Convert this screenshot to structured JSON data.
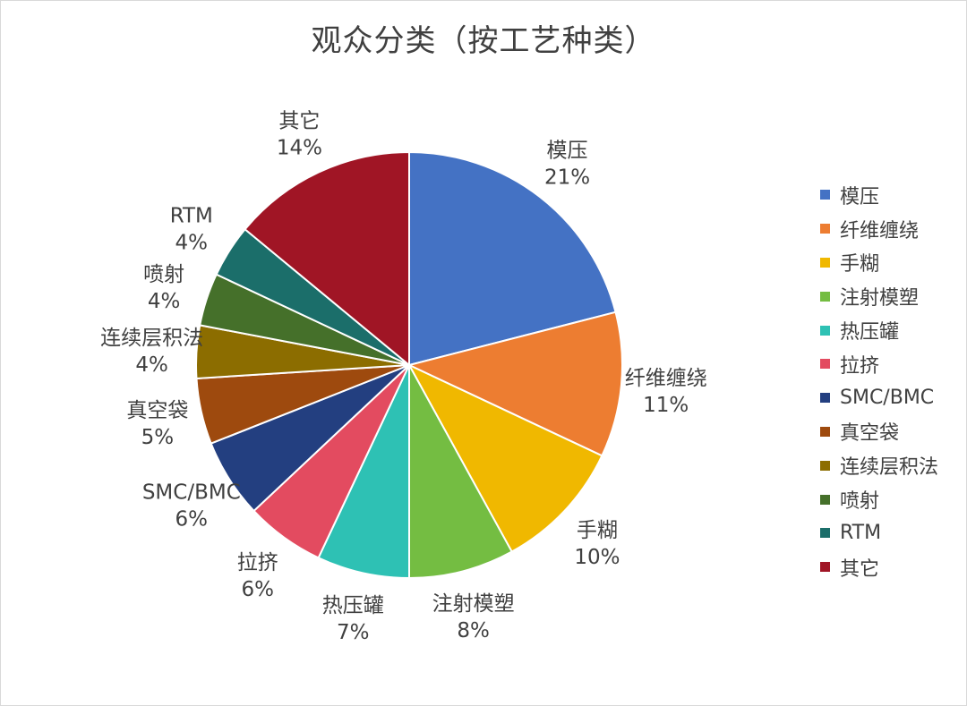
{
  "chart_data": {
    "type": "pie",
    "title": "观众分类（按工艺种类）",
    "legend_position": "right",
    "slices": [
      {
        "label": "模压",
        "value": 21,
        "display": "21%",
        "color": "#4472C4"
      },
      {
        "label": "纤维缠绕",
        "value": 11,
        "display": "11%",
        "color": "#ED7D31"
      },
      {
        "label": "手糊",
        "value": 10,
        "display": "10%",
        "color": "#F0B800"
      },
      {
        "label": "注射模塑",
        "value": 8,
        "display": "8%",
        "color": "#74BD42"
      },
      {
        "label": "热压罐",
        "value": 7,
        "display": "7%",
        "color": "#2EC1B4"
      },
      {
        "label": "拉挤",
        "value": 6,
        "display": "6%",
        "color": "#E34B60"
      },
      {
        "label": "SMC/BMC",
        "value": 6,
        "display": "6%",
        "color": "#233F80"
      },
      {
        "label": "真空袋",
        "value": 5,
        "display": "5%",
        "color": "#9E4A0E"
      },
      {
        "label": "连续层积法",
        "value": 4,
        "display": "4%",
        "color": "#8C6D00"
      },
      {
        "label": "喷射",
        "value": 4,
        "display": "4%",
        "color": "#45702A"
      },
      {
        "label": "RTM",
        "value": 4,
        "display": "4%",
        "color": "#1B6E6A"
      },
      {
        "label": "其它",
        "value": 14,
        "display": "14%",
        "color": "#A01525"
      }
    ]
  }
}
